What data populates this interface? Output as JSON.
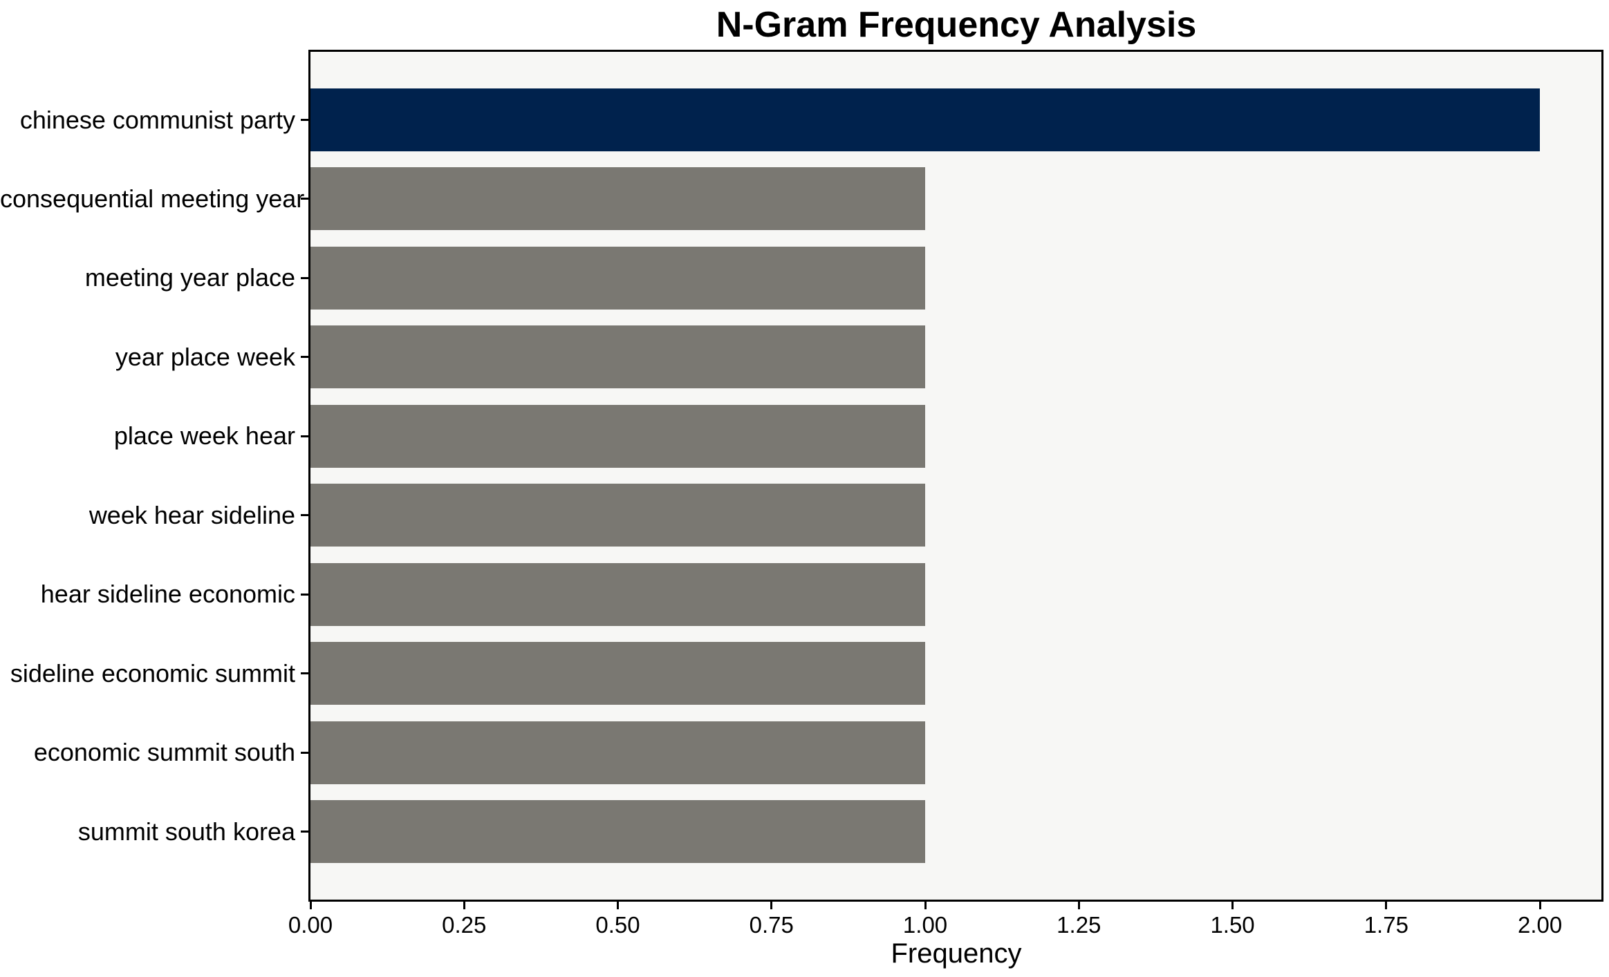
{
  "figure": {
    "background": "#ffffff"
  },
  "chart_data": {
    "type": "bar",
    "orientation": "horizontal",
    "title": "N-Gram Frequency Analysis",
    "xlabel": "Frequency",
    "ylabel": "",
    "categories": [
      "chinese communist party",
      "consequential meeting year",
      "meeting year place",
      "year place week",
      "place week hear",
      "week hear sideline",
      "hear sideline economic",
      "sideline economic summit",
      "economic summit south",
      "summit south korea"
    ],
    "values": [
      2,
      1,
      1,
      1,
      1,
      1,
      1,
      1,
      1,
      1
    ],
    "bar_colors": [
      "#00224d",
      "#7a7872",
      "#7a7872",
      "#7a7872",
      "#7a7872",
      "#7a7872",
      "#7a7872",
      "#7a7872",
      "#7a7872",
      "#7a7872"
    ],
    "xlim": [
      0,
      2.1
    ],
    "xticks": [
      0,
      0.25,
      0.5,
      0.75,
      1.0,
      1.25,
      1.5,
      1.75,
      2.0
    ],
    "xtick_labels": [
      "0.00",
      "0.25",
      "0.50",
      "0.75",
      "1.00",
      "1.25",
      "1.50",
      "1.75",
      "2.00"
    ],
    "grid": false,
    "legend": null,
    "plot_background": "#f7f7f5",
    "axis_color": "#000000",
    "text_color": "#000000"
  }
}
